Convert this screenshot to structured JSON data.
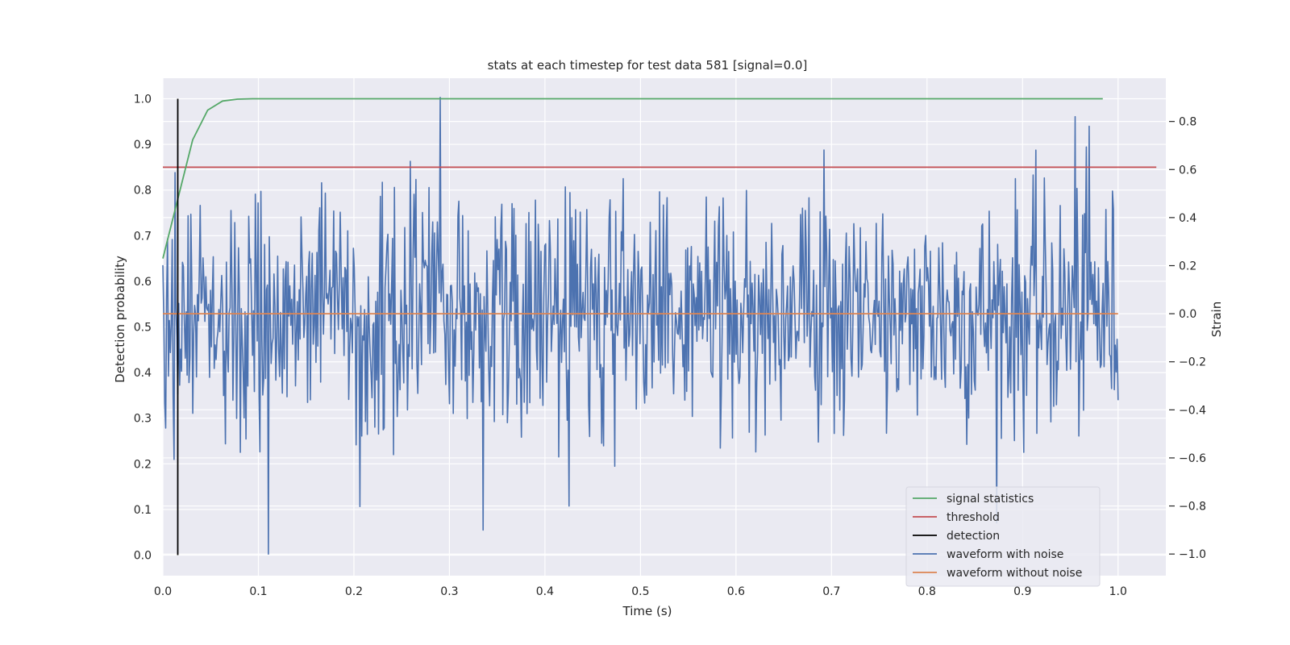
{
  "chart_data": {
    "type": "line",
    "title": "stats at each timestep for test data 581 [signal=0.0]",
    "xlabel": "Time (s)",
    "ylabel_left": "Detection probability",
    "ylabel_right": "Strain",
    "xlim": [
      0.0,
      1.05
    ],
    "ylim_left": [
      -0.045,
      1.045
    ],
    "ylim_right": [
      -1.09,
      0.98
    ],
    "x_ticks": [
      "0.0",
      "0.1",
      "0.2",
      "0.3",
      "0.4",
      "0.5",
      "0.6",
      "0.7",
      "0.8",
      "0.9",
      "1.0"
    ],
    "y_ticks_left": [
      "0.0",
      "0.1",
      "0.2",
      "0.3",
      "0.4",
      "0.5",
      "0.6",
      "0.7",
      "0.8",
      "0.9",
      "1.0"
    ],
    "y_ticks_right": [
      "−1.0",
      "−0.8",
      "−0.6",
      "−0.4",
      "−0.2",
      "0.0",
      "0.2",
      "0.4",
      "0.6",
      "0.8"
    ],
    "grid": true,
    "legend_position": "lower-right",
    "colors": {
      "signal_statistics": "#55a868",
      "threshold": "#c44e52",
      "detection": "#000000",
      "waveform_with_noise": "#4c72b0",
      "waveform_without_noise": "#dd8452",
      "plot_background": "#eaeaf2",
      "grid": "#ffffff"
    },
    "series": [
      {
        "name": "signal statistics",
        "axis": "left",
        "x": [
          0.0,
          0.0156,
          0.0312,
          0.0469,
          0.0625,
          0.0781,
          0.0938,
          0.125,
          0.25,
          0.5,
          0.75,
          0.984
        ],
        "y": [
          0.65,
          0.78,
          0.91,
          0.975,
          0.995,
          0.999,
          1.0,
          1.0,
          1.0,
          1.0,
          1.0,
          1.0
        ]
      },
      {
        "name": "threshold",
        "axis": "left",
        "x": [
          0.0,
          1.04
        ],
        "y": [
          0.85,
          0.85
        ]
      },
      {
        "name": "detection",
        "axis": "left",
        "x": [
          0.0156,
          0.0156
        ],
        "y": [
          0.0,
          1.0
        ]
      },
      {
        "name": "waveform with noise",
        "axis": "right",
        "n_samples": 1024,
        "x_range": [
          0.0,
          1.0
        ],
        "amplitude_sd": 0.25,
        "min": -1.0,
        "max": 0.9,
        "notable_points": [
          {
            "x": 0.11,
            "y": -1.0
          },
          {
            "x": 0.29,
            "y": 0.9
          },
          {
            "x": 0.335,
            "y": -0.9
          },
          {
            "x": 0.425,
            "y": -0.8
          },
          {
            "x": 0.955,
            "y": 0.82
          },
          {
            "x": 0.97,
            "y": 0.78
          }
        ]
      },
      {
        "name": "waveform without noise",
        "axis": "right",
        "x": [
          0.0,
          1.0
        ],
        "y": [
          0.0,
          0.0
        ]
      }
    ]
  }
}
